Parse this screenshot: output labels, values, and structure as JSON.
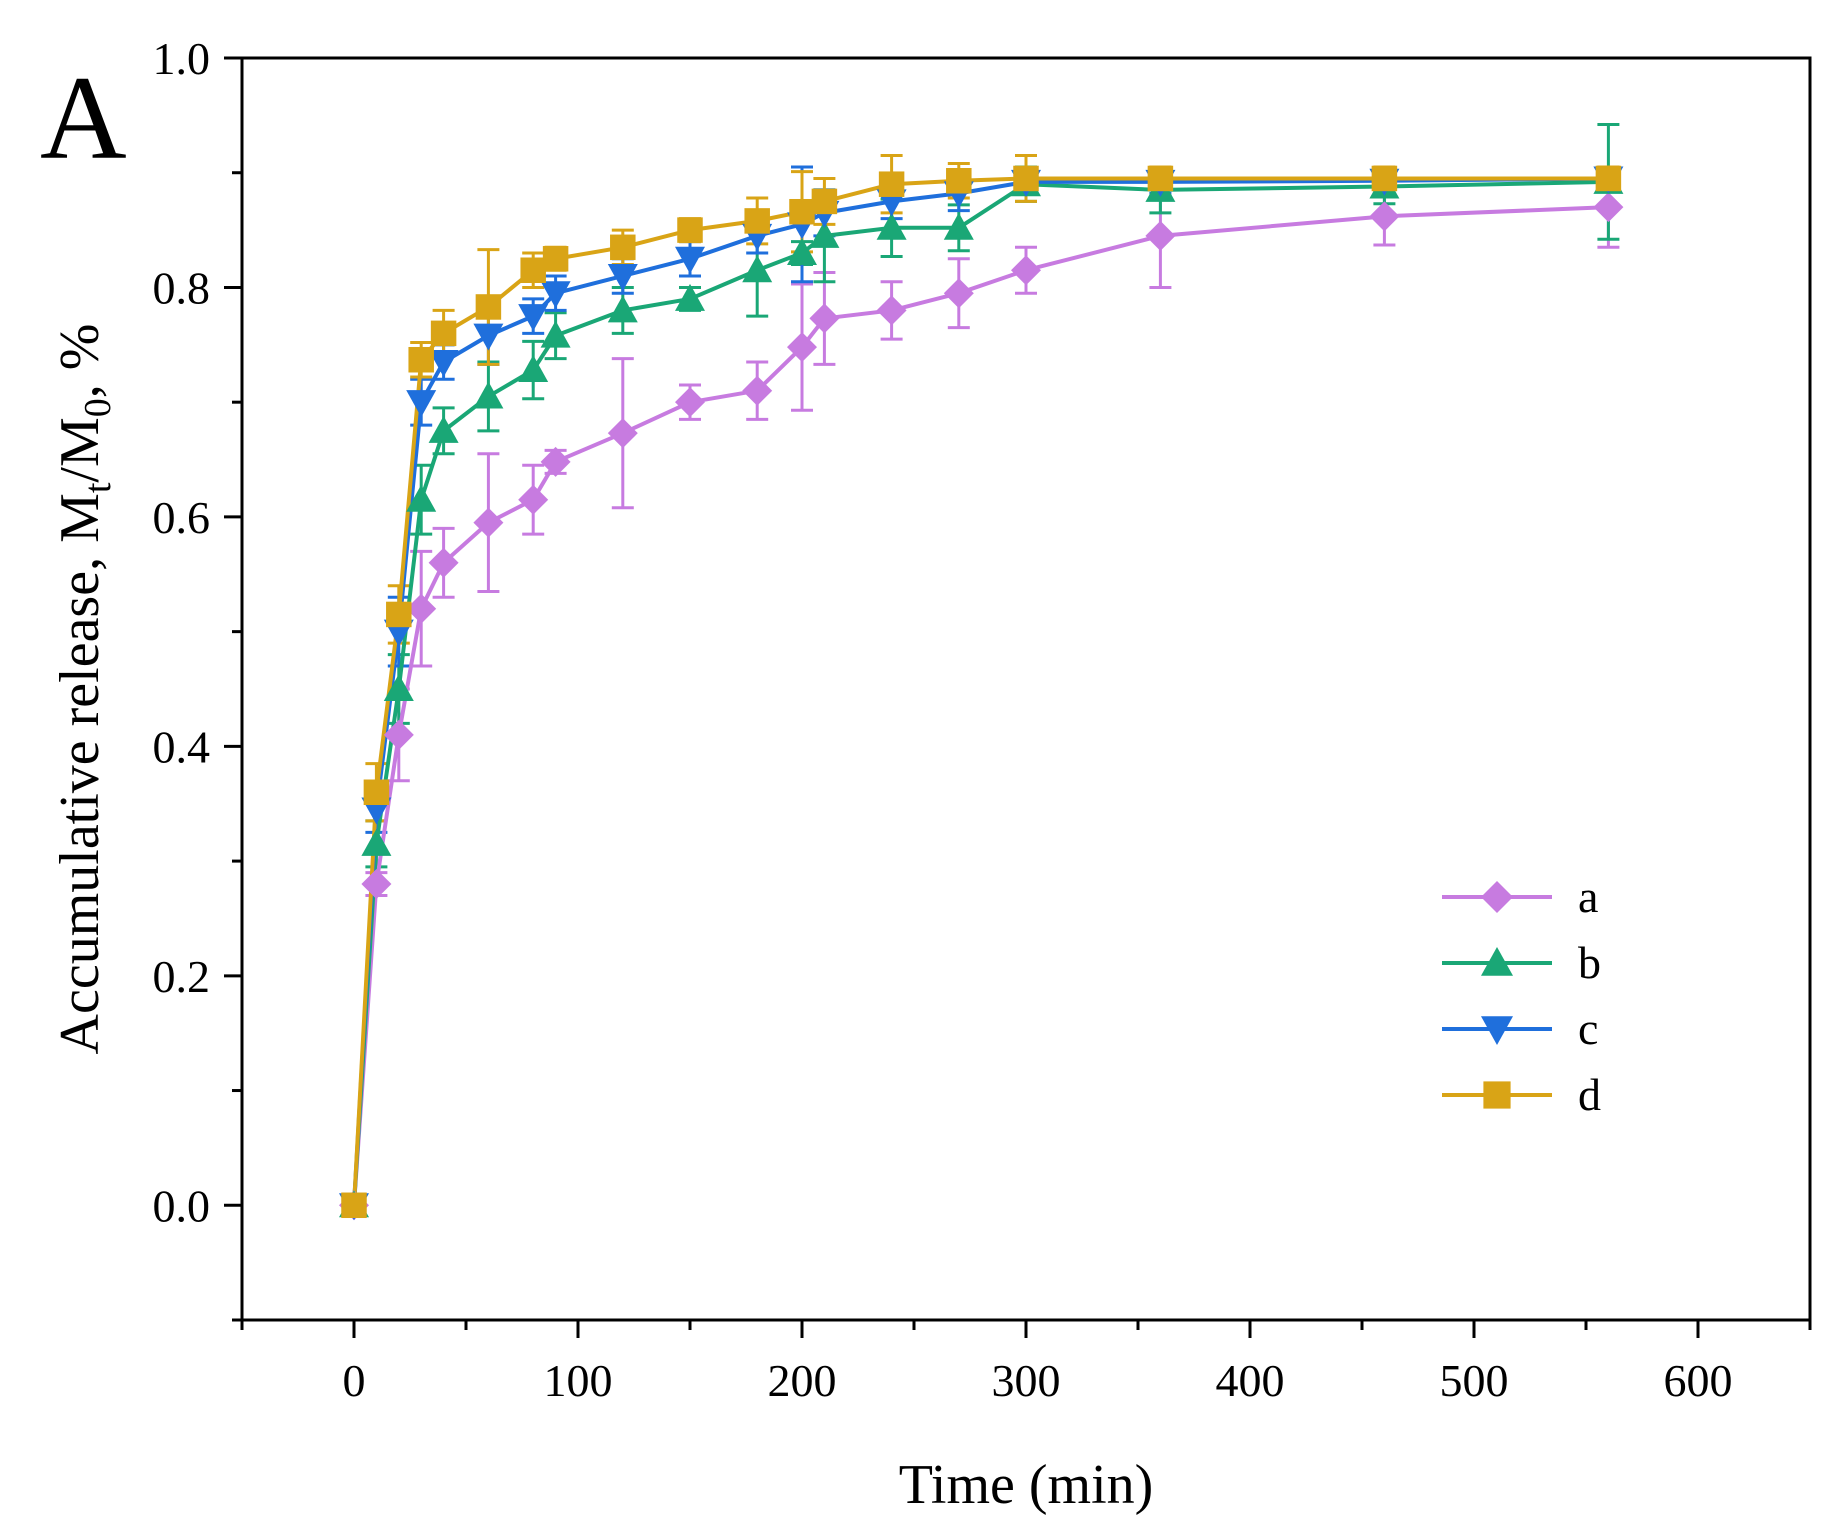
{
  "chart_data": {
    "type": "line",
    "panel_label": "A",
    "title": "",
    "xlabel": "Time (min)",
    "ylabel_parts": [
      "Accumulative release, M",
      "t",
      "/M",
      "0",
      ", %"
    ],
    "xlim": [
      -50,
      650
    ],
    "ylim": [
      -0.1,
      1.0
    ],
    "xticks": [
      0,
      100,
      200,
      300,
      400,
      500,
      600
    ],
    "yticks": [
      0.0,
      0.2,
      0.4,
      0.6,
      0.8,
      1.0
    ],
    "xtick_labels": [
      "0",
      "100",
      "200",
      "300",
      "400",
      "500",
      "600"
    ],
    "ytick_labels": [
      "0.0",
      "0.2",
      "0.4",
      "0.6",
      "0.8",
      "1.0"
    ],
    "legend_position": "lower-right",
    "series": [
      {
        "name": "a",
        "color": "#c77be0",
        "marker": "diamond",
        "x": [
          0,
          10,
          20,
          30,
          40,
          60,
          80,
          90,
          120,
          150,
          180,
          200,
          210,
          240,
          270,
          300,
          360,
          460,
          560
        ],
        "y": [
          0.0,
          0.28,
          0.41,
          0.52,
          0.56,
          0.595,
          0.615,
          0.648,
          0.673,
          0.7,
          0.71,
          0.748,
          0.773,
          0.78,
          0.795,
          0.815,
          0.845,
          0.862,
          0.87
        ],
        "err": [
          0.0,
          0.01,
          0.04,
          0.05,
          0.03,
          0.06,
          0.03,
          0.01,
          0.065,
          0.015,
          0.025,
          0.055,
          0.04,
          0.025,
          0.03,
          0.02,
          0.045,
          0.025,
          0.035
        ]
      },
      {
        "name": "b",
        "color": "#1aa776",
        "marker": "triangle-up",
        "x": [
          0,
          10,
          20,
          30,
          40,
          60,
          80,
          90,
          120,
          150,
          180,
          200,
          210,
          240,
          270,
          300,
          360,
          460,
          560
        ],
        "y": [
          0.0,
          0.315,
          0.45,
          0.615,
          0.675,
          0.705,
          0.728,
          0.758,
          0.78,
          0.79,
          0.815,
          0.83,
          0.845,
          0.852,
          0.852,
          0.89,
          0.885,
          0.888,
          0.892
        ],
        "err": [
          0.0,
          0.02,
          0.03,
          0.03,
          0.02,
          0.03,
          0.025,
          0.02,
          0.02,
          0.01,
          0.04,
          0.01,
          0.04,
          0.025,
          0.02,
          0.015,
          0.02,
          0.015,
          0.05
        ]
      },
      {
        "name": "c",
        "color": "#1f6fdc",
        "marker": "triangle-down",
        "x": [
          0,
          10,
          20,
          30,
          40,
          60,
          80,
          90,
          120,
          150,
          180,
          200,
          210,
          240,
          270,
          300,
          360,
          460,
          560
        ],
        "y": [
          0.0,
          0.345,
          0.5,
          0.7,
          0.735,
          0.758,
          0.775,
          0.795,
          0.81,
          0.825,
          0.845,
          0.855,
          0.865,
          0.875,
          0.882,
          0.892,
          0.892,
          0.893,
          0.895
        ],
        "err": [
          0.0,
          0.02,
          0.03,
          0.02,
          0.015,
          0.025,
          0.015,
          0.015,
          0.015,
          0.015,
          0.015,
          0.05,
          0.02,
          0.015,
          0.015,
          0.01,
          0.01,
          0.01,
          0.01
        ]
      },
      {
        "name": "d",
        "color": "#d9a416",
        "marker": "square",
        "x": [
          0,
          10,
          20,
          30,
          40,
          60,
          80,
          90,
          120,
          150,
          180,
          200,
          210,
          240,
          270,
          300,
          360,
          460,
          560
        ],
        "y": [
          0.0,
          0.36,
          0.515,
          0.737,
          0.76,
          0.783,
          0.815,
          0.825,
          0.835,
          0.85,
          0.858,
          0.866,
          0.875,
          0.89,
          0.893,
          0.895,
          0.895,
          0.895,
          0.895
        ],
        "err": [
          0.0,
          0.025,
          0.025,
          0.015,
          0.02,
          0.05,
          0.015,
          0.01,
          0.015,
          0.01,
          0.02,
          0.035,
          0.02,
          0.025,
          0.015,
          0.02,
          0.01,
          0.01,
          0.01
        ]
      }
    ]
  }
}
